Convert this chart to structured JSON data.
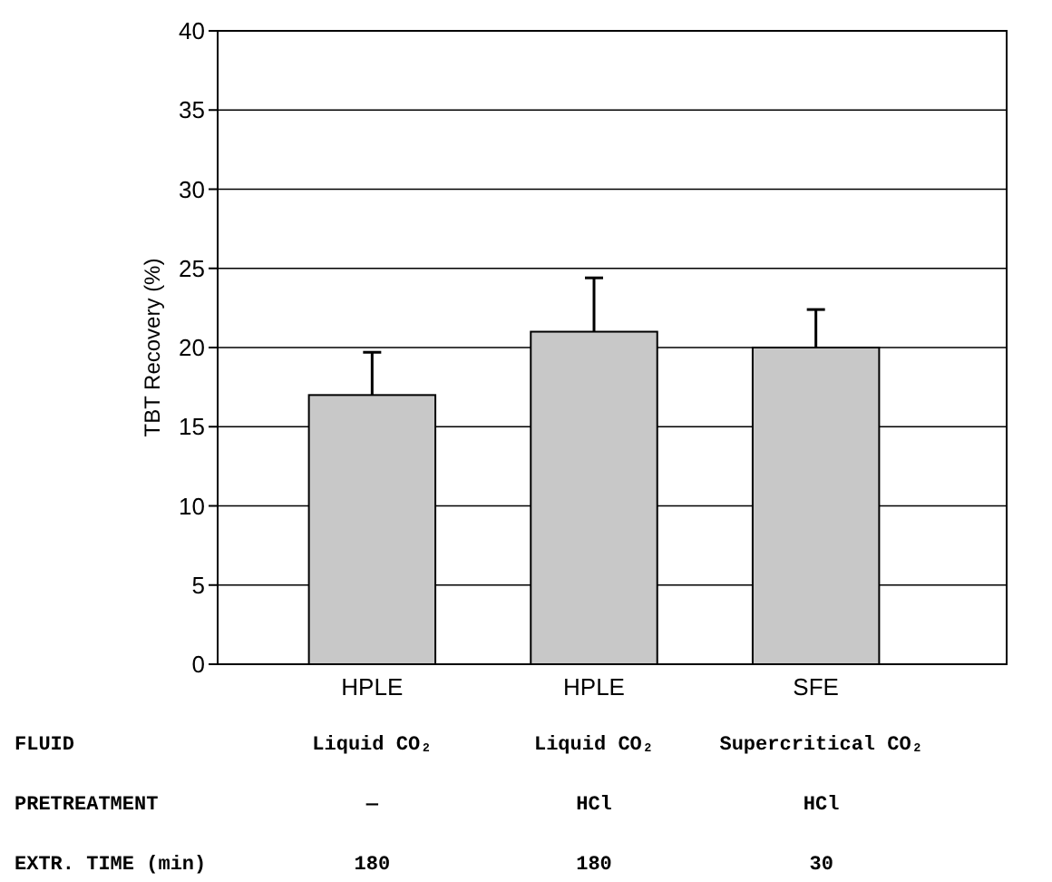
{
  "chart_data": {
    "type": "bar",
    "ylabel": "TBT Recovery (%)",
    "categories": [
      "HPLE",
      "HPLE",
      "SFE"
    ],
    "values": [
      17,
      21,
      20
    ],
    "color": "#c8c8c8",
    "errors": [
      [
        17,
        19.7
      ],
      [
        21,
        24.4
      ],
      [
        20,
        22.4
      ]
    ],
    "ylim": [
      0,
      40
    ],
    "yticks": [
      0,
      5,
      10,
      15,
      20,
      25,
      30,
      35,
      40
    ],
    "grid": "y",
    "annotations": [
      "FLUID",
      "Liquid CO₂",
      "Liquid CO₂",
      "Supercritical CO₂",
      "PRETREATMENT",
      "—",
      "HCl",
      "HCl",
      "EXTR. TIME (min)",
      "180",
      "180",
      "30"
    ]
  }
}
